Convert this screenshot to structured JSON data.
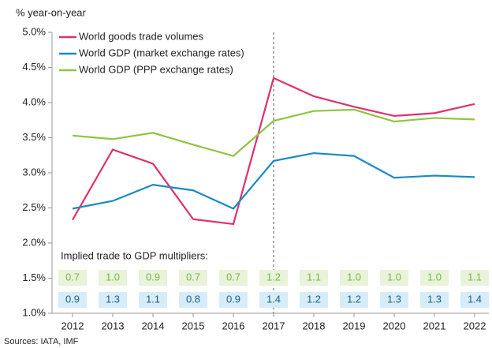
{
  "chart_data": {
    "type": "line",
    "y_axis_label": "% year-on-year",
    "x": [
      2012,
      2013,
      2014,
      2015,
      2016,
      2017,
      2018,
      2019,
      2020,
      2021,
      2022
    ],
    "series": [
      {
        "name": "World goods trade volumes",
        "color": "#e0306e",
        "values": [
          2.33,
          3.33,
          3.13,
          2.34,
          2.27,
          4.35,
          4.09,
          3.94,
          3.81,
          3.85,
          3.98
        ]
      },
      {
        "name": "World GDP (market exchange rates)",
        "color": "#1a8ac6",
        "values": [
          2.49,
          2.6,
          2.83,
          2.75,
          2.49,
          3.17,
          3.28,
          3.24,
          2.93,
          2.96,
          2.94
        ]
      },
      {
        "name": "World GDP (PPP exchange rates)",
        "color": "#8dc63f",
        "values": [
          3.53,
          3.48,
          3.57,
          3.4,
          3.24,
          3.74,
          3.88,
          3.9,
          3.73,
          3.78,
          3.76
        ]
      }
    ],
    "ylim": [
      1.0,
      5.0
    ],
    "yticks": [
      {
        "value": 1.0,
        "label": "1.0%"
      },
      {
        "value": 1.5,
        "label": "1.5%"
      },
      {
        "value": 2.0,
        "label": "2.0%"
      },
      {
        "value": 2.5,
        "label": "2.5%"
      },
      {
        "value": 3.0,
        "label": "3.0%"
      },
      {
        "value": 3.5,
        "label": "3.5%"
      },
      {
        "value": 4.0,
        "label": "4.0%"
      },
      {
        "value": 4.5,
        "label": "4.5%"
      },
      {
        "value": 5.0,
        "label": "5.0%"
      }
    ],
    "vline_x": 2017,
    "multipliers": {
      "title": "Implied trade to GDP multipliers:",
      "rows": [
        {
          "color": "#7ab648",
          "fill": "#e8f3da",
          "values": [
            0.7,
            1.0,
            0.9,
            0.7,
            0.7,
            1.2,
            1.1,
            1.0,
            1.0,
            1.0,
            1.1
          ],
          "value_labels": [
            "0.7",
            "1.0",
            "0.9",
            "0.7",
            "0.7",
            "1.2",
            "1.1",
            "1.0",
            "1.0",
            "1.0",
            "1.1"
          ]
        },
        {
          "color": "#1f5f8b",
          "fill": "#d6ecf8",
          "values": [
            0.9,
            1.3,
            1.1,
            0.8,
            0.9,
            1.4,
            1.2,
            1.2,
            1.3,
            1.3,
            1.4
          ],
          "value_labels": [
            "0.9",
            "1.3",
            "1.1",
            "0.8",
            "0.9",
            "1.4",
            "1.2",
            "1.2",
            "1.3",
            "1.3",
            "1.4"
          ]
        }
      ]
    },
    "legend": "top-left",
    "source": "Sources: IATA, IMF"
  }
}
